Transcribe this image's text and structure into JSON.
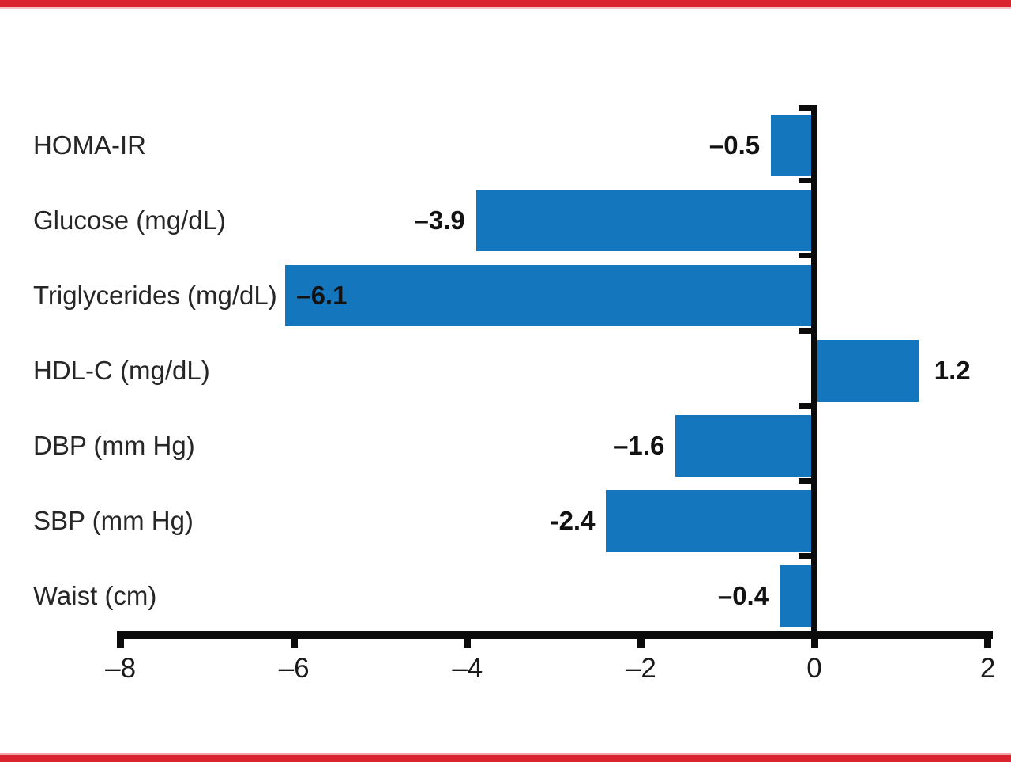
{
  "frame": {
    "top_rule_color": "#d9232e",
    "bottom_rule_color": "#d9232e",
    "background_color": "#ffffff"
  },
  "chart_data": {
    "type": "bar",
    "orientation": "horizontal",
    "title": "",
    "xlabel": "",
    "ylabel": "",
    "categories": [
      "HOMA-IR",
      "Glucose (mg/dL)",
      "Triglycerides (mg/dL)",
      "HDL-C (mg/dL)",
      "DBP (mm Hg)",
      "SBP (mm Hg)",
      "Waist (cm)"
    ],
    "values": [
      -0.5,
      -3.9,
      -6.1,
      1.2,
      -1.6,
      -2.4,
      -0.4
    ],
    "bar_labels": [
      "–0.5",
      "–3.9",
      "–6.1",
      "1.2",
      "–1.6",
      "-2.4",
      "–0.4"
    ],
    "bar_label_positions": [
      "outside-left",
      "outside-left",
      "inside-left",
      "outside-right",
      "outside-left",
      "outside-left",
      "outside-left"
    ],
    "xlim": [
      -8,
      2
    ],
    "x_ticks": [
      -8,
      -6,
      -4,
      -2,
      0,
      2
    ],
    "x_tick_labels": [
      "–8",
      "–6",
      "–4",
      "–2",
      "0",
      "2"
    ],
    "bar_color": "#1476bd",
    "axis_color": "#0b0b0b",
    "value_label_color": "#121212",
    "category_label_color": "#262626",
    "grid": false,
    "legend_position": "none",
    "baseline": 0
  }
}
